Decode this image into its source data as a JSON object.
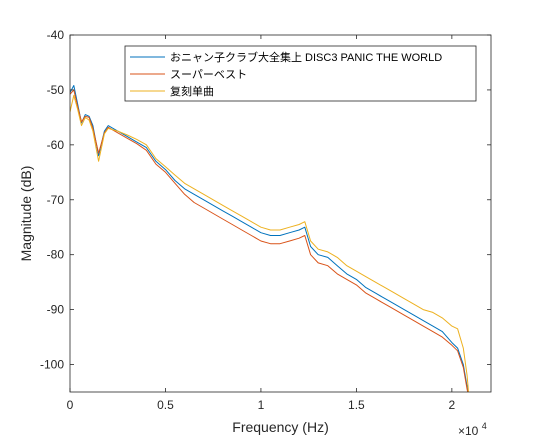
{
  "chart_data": {
    "type": "line",
    "title": "",
    "xlabel": "Frequency (Hz)",
    "ylabel": "Magnitude (dB)",
    "xlim": [
      0,
      22050
    ],
    "ylim": [
      -105,
      -40
    ],
    "x_exponent_label": "×10",
    "x_exponent_power": "4",
    "x_ticks": [
      0,
      5000,
      10000,
      15000,
      20000
    ],
    "x_tick_labels": [
      "0",
      "0.5",
      "1",
      "1.5",
      "2"
    ],
    "y_ticks": [
      -100,
      -90,
      -80,
      -70,
      -60,
      -50,
      -40
    ],
    "y_tick_labels": [
      "-100",
      "-90",
      "-80",
      "-70",
      "-60",
      "-50",
      "-40"
    ],
    "grid": false,
    "legend_position": "top-right",
    "x": [
      0,
      200,
      400,
      600,
      800,
      1000,
      1200,
      1500,
      1800,
      2000,
      2500,
      3000,
      3500,
      4000,
      4500,
      5000,
      5500,
      6000,
      6500,
      7000,
      7500,
      8000,
      8500,
      9000,
      9500,
      10000,
      10500,
      11000,
      11500,
      12000,
      12300,
      12600,
      13000,
      13500,
      14000,
      14500,
      15000,
      15500,
      16000,
      16500,
      17000,
      17500,
      18000,
      18500,
      19000,
      19500,
      20000,
      20300,
      20600,
      20800,
      20900
    ],
    "series": [
      {
        "name": "おニャン子クラブ大全集上 DISC3 PANIC THE WORLD",
        "color": "#0072BD",
        "values": [
          -50.5,
          -49.2,
          -52.5,
          -56.0,
          -54.5,
          -54.8,
          -56.5,
          -62.0,
          -57.5,
          -56.5,
          -57.5,
          -58.5,
          -59.5,
          -60.5,
          -63.0,
          -64.5,
          -66.5,
          -68.0,
          -69.0,
          -70.0,
          -71.0,
          -72.0,
          -73.0,
          -74.0,
          -75.0,
          -76.0,
          -76.5,
          -76.5,
          -76.0,
          -75.5,
          -75.0,
          -78.5,
          -80.0,
          -80.5,
          -82.0,
          -83.5,
          -84.5,
          -86.0,
          -87.0,
          -88.0,
          -89.0,
          -90.0,
          -91.0,
          -92.0,
          -93.0,
          -94.0,
          -96.0,
          -97.0,
          -100.0,
          -104.0,
          -106.0
        ]
      },
      {
        "name": "スーパーベスト",
        "color": "#D95319",
        "values": [
          -50.8,
          -50.0,
          -53.0,
          -55.8,
          -54.8,
          -55.0,
          -57.0,
          -61.5,
          -57.8,
          -56.8,
          -57.8,
          -58.8,
          -59.8,
          -61.0,
          -63.5,
          -65.0,
          -67.0,
          -69.0,
          -70.5,
          -71.5,
          -72.5,
          -73.5,
          -74.5,
          -75.5,
          -76.5,
          -77.5,
          -78.0,
          -78.0,
          -77.5,
          -77.0,
          -76.5,
          -80.0,
          -81.5,
          -82.0,
          -83.5,
          -84.5,
          -85.5,
          -87.0,
          -88.0,
          -89.0,
          -90.0,
          -91.0,
          -92.0,
          -93.0,
          -94.0,
          -95.0,
          -96.5,
          -97.5,
          -100.5,
          -104.5,
          -106.0
        ]
      },
      {
        "name": "复刻单曲",
        "color": "#EDB120",
        "values": [
          -54.0,
          -51.0,
          -53.5,
          -56.5,
          -55.0,
          -55.5,
          -57.5,
          -63.0,
          -58.0,
          -57.0,
          -57.5,
          -58.2,
          -59.0,
          -60.0,
          -62.5,
          -64.0,
          -65.5,
          -67.0,
          -68.0,
          -69.0,
          -70.0,
          -71.0,
          -72.0,
          -73.0,
          -74.0,
          -75.0,
          -75.5,
          -75.5,
          -75.0,
          -74.5,
          -74.0,
          -77.5,
          -79.0,
          -79.5,
          -80.5,
          -82.0,
          -83.0,
          -84.0,
          -85.0,
          -86.0,
          -87.0,
          -88.0,
          -89.0,
          -90.0,
          -90.5,
          -91.5,
          -93.0,
          -93.5,
          -97.0,
          -102.0,
          -106.0
        ]
      }
    ]
  }
}
